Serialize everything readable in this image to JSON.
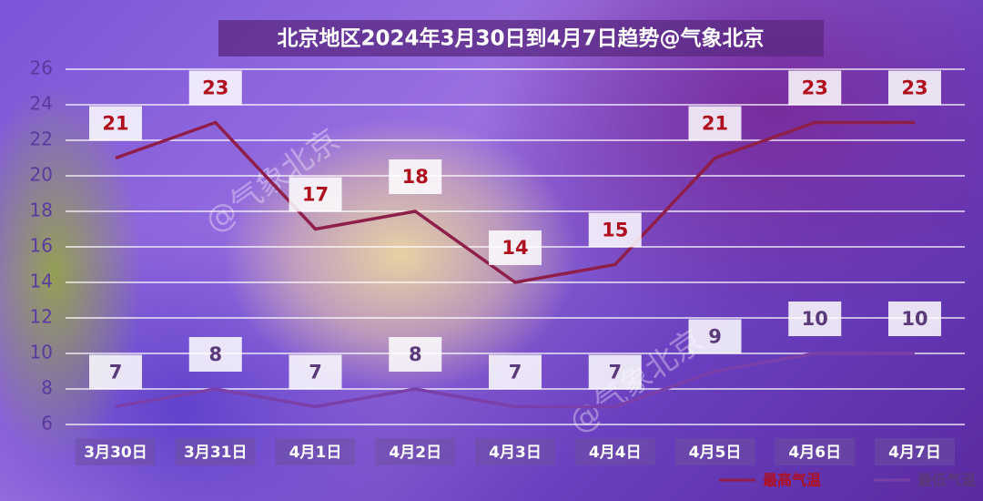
{
  "chart_data": {
    "type": "line",
    "title": "北京地区2024年3月30日到4月7日趋势@气象北京",
    "watermark": "@气象北京",
    "categories": [
      "3月30日",
      "3月31日",
      "4月1日",
      "4月2日",
      "4月3日",
      "4月4日",
      "4月5日",
      "4月6日",
      "4月7日"
    ],
    "series": [
      {
        "name": "最高气温",
        "color": "#8e1f4a",
        "label_color": "#b0101e",
        "values": [
          21,
          23,
          17,
          18,
          14,
          15,
          21,
          23,
          23
        ]
      },
      {
        "name": "最低气温",
        "color": "#7a3fa8",
        "label_color": "#5a3a7a",
        "values": [
          7,
          8,
          7,
          8,
          7,
          7,
          9,
          10,
          10
        ]
      }
    ],
    "ylim": [
      6,
      26
    ],
    "yticks": [
      6,
      8,
      10,
      12,
      14,
      16,
      18,
      20,
      22,
      24,
      26
    ],
    "grid": true,
    "legend": "bottom-right"
  }
}
